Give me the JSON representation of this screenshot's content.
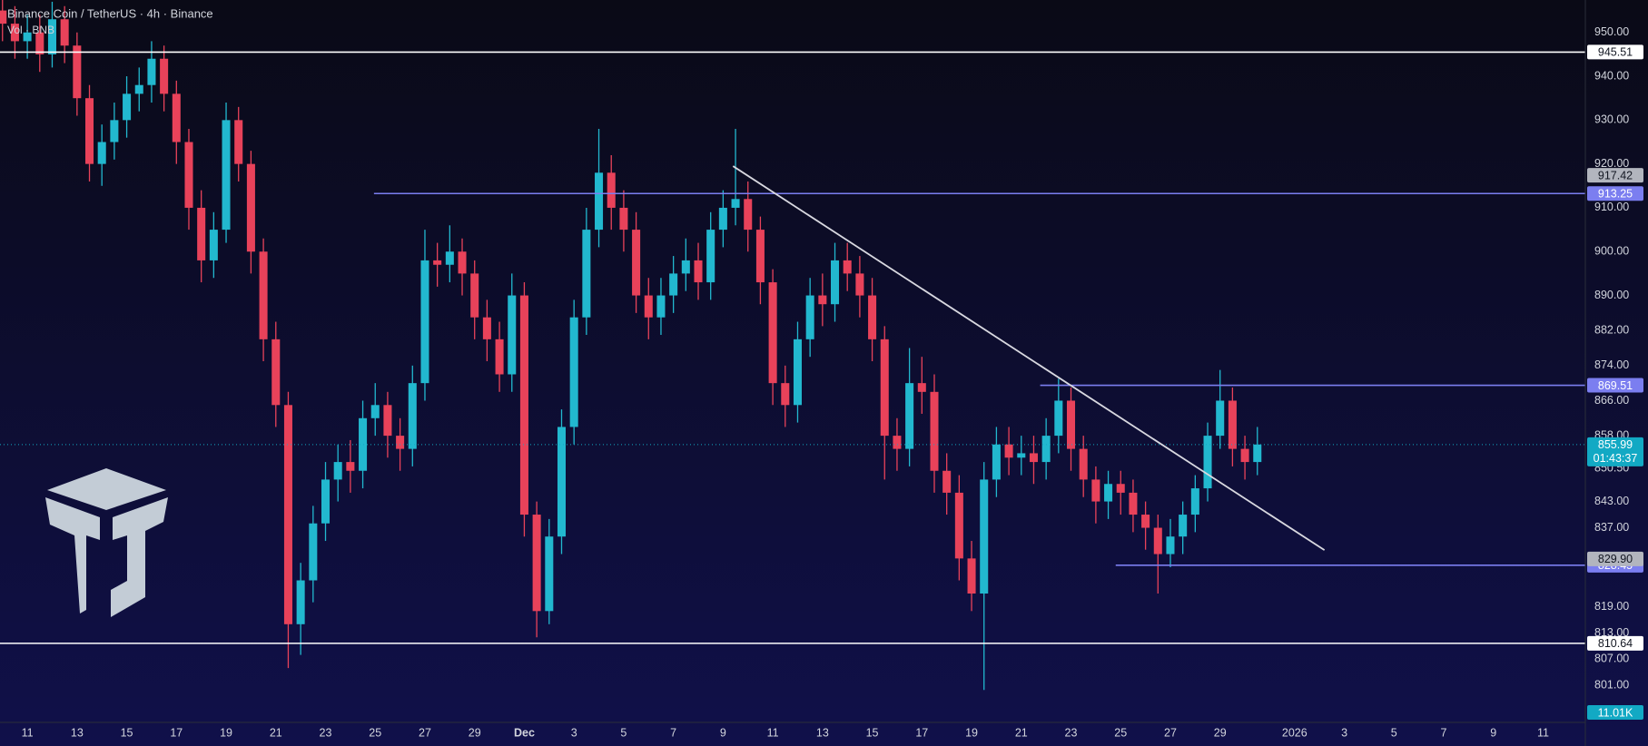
{
  "chart_data": {
    "type": "candlestick",
    "title": "Binance Coin / TetherUS · 4h · Binance",
    "subtitle": "Vol · BNB",
    "up_color": "#22b8cf",
    "down_color": "#e8425a",
    "x": [
      -1,
      -0.5,
      0,
      0.5,
      1,
      1.5,
      2,
      2.5,
      3,
      3.5,
      4,
      4.5,
      5,
      5.5,
      6,
      6.5,
      7,
      7.5,
      8,
      8.5,
      9,
      9.5,
      10,
      10.5,
      11,
      11.5,
      12,
      12.5,
      13,
      13.5,
      14,
      14.5,
      15,
      15.5,
      16,
      16.5,
      17,
      17.5,
      18,
      18.5,
      19,
      19.5,
      20,
      20.5,
      21,
      21.5,
      22,
      22.5,
      23,
      23.5,
      24,
      24.5,
      25,
      25.5,
      26,
      26.5,
      27,
      27.5,
      28,
      28.5,
      29,
      29.5,
      30,
      30.5,
      31,
      31.5,
      32,
      32.5,
      33,
      33.5,
      34,
      34.5,
      35,
      35.5,
      36,
      36.5,
      37,
      37.5,
      38,
      38.5,
      39,
      39.5,
      40,
      40.5,
      41,
      41.5,
      42,
      42.5,
      43,
      43.5,
      44,
      44.5,
      45,
      45.5,
      46,
      46.5,
      47,
      47.5,
      48,
      48.5,
      49,
      49.5
    ],
    "open": [
      955,
      952,
      948,
      950,
      945,
      953,
      947,
      935,
      920,
      925,
      930,
      936,
      938,
      944,
      936,
      925,
      910,
      898,
      905,
      930,
      920,
      900,
      880,
      865,
      815,
      825,
      838,
      848,
      852,
      850,
      862,
      865,
      858,
      855,
      870,
      898,
      897,
      900,
      895,
      885,
      880,
      872,
      890,
      840,
      818,
      835,
      860,
      885,
      905,
      918,
      910,
      905,
      890,
      885,
      890,
      895,
      898,
      893,
      905,
      910,
      912,
      905,
      893,
      870,
      865,
      880,
      890,
      888,
      898,
      895,
      890,
      880,
      858,
      855,
      870,
      868,
      850,
      845,
      830,
      822,
      848,
      856,
      853,
      854,
      852,
      858,
      866,
      855,
      848,
      843,
      847,
      845,
      840,
      837,
      831,
      835,
      840,
      846,
      858,
      866,
      855,
      852
    ],
    "high": [
      959,
      956,
      954,
      954,
      957,
      956,
      950,
      938,
      929,
      934,
      940,
      942,
      948,
      947,
      939,
      928,
      914,
      909,
      934,
      933,
      923,
      903,
      884,
      868,
      829,
      842,
      852,
      856,
      857,
      866,
      870,
      868,
      862,
      874,
      905,
      902,
      906,
      903,
      898,
      889,
      884,
      895,
      893,
      843,
      839,
      864,
      889,
      910,
      928,
      922,
      914,
      909,
      894,
      894,
      899,
      903,
      902,
      909,
      914,
      928,
      916,
      908,
      896,
      874,
      884,
      894,
      895,
      902,
      902,
      899,
      894,
      883,
      862,
      878,
      876,
      872,
      854,
      849,
      834,
      852,
      860,
      860,
      858,
      858,
      862,
      871,
      869,
      858,
      851,
      850,
      850,
      848,
      843,
      840,
      839,
      843,
      849,
      861,
      873,
      869,
      858,
      860
    ],
    "low": [
      948,
      944,
      944,
      941,
      942,
      943,
      931,
      916,
      915,
      921,
      926,
      932,
      934,
      932,
      920,
      905,
      893,
      894,
      902,
      916,
      895,
      875,
      860,
      805,
      808,
      820,
      834,
      843,
      845,
      846,
      858,
      853,
      850,
      851,
      866,
      892,
      893,
      890,
      880,
      875,
      868,
      868,
      835,
      812,
      815,
      831,
      856,
      881,
      901,
      905,
      900,
      886,
      880,
      881,
      886,
      891,
      889,
      889,
      901,
      906,
      900,
      888,
      865,
      860,
      861,
      876,
      883,
      884,
      891,
      885,
      875,
      848,
      850,
      851,
      863,
      845,
      840,
      825,
      818,
      800,
      844,
      849,
      849,
      847,
      848,
      854,
      850,
      844,
      838,
      839,
      840,
      836,
      832,
      822,
      828,
      831,
      836,
      843,
      855,
      851,
      848,
      849
    ],
    "close": [
      952,
      948,
      950,
      945,
      953,
      947,
      935,
      920,
      925,
      930,
      936,
      938,
      944,
      936,
      925,
      910,
      898,
      905,
      930,
      920,
      900,
      880,
      865,
      815,
      825,
      838,
      848,
      852,
      850,
      862,
      865,
      858,
      855,
      870,
      898,
      897,
      900,
      895,
      885,
      880,
      872,
      890,
      840,
      818,
      835,
      860,
      885,
      905,
      918,
      910,
      905,
      890,
      885,
      890,
      895,
      898,
      893,
      905,
      910,
      912,
      905,
      893,
      870,
      865,
      880,
      890,
      888,
      898,
      895,
      890,
      880,
      858,
      855,
      870,
      868,
      850,
      845,
      830,
      822,
      848,
      856,
      853,
      854,
      852,
      858,
      866,
      855,
      848,
      843,
      847,
      845,
      840,
      837,
      831,
      835,
      840,
      846,
      858,
      866,
      855,
      852,
      856
    ],
    "xlim": [
      -1.1,
      62.7
    ],
    "xticks": [
      {
        "value": 0,
        "label": "11"
      },
      {
        "value": 2,
        "label": "13"
      },
      {
        "value": 4,
        "label": "15"
      },
      {
        "value": 6,
        "label": "17"
      },
      {
        "value": 8,
        "label": "19"
      },
      {
        "value": 10,
        "label": "21"
      },
      {
        "value": 12,
        "label": "23"
      },
      {
        "value": 14,
        "label": "25"
      },
      {
        "value": 16,
        "label": "27"
      },
      {
        "value": 18,
        "label": "29"
      },
      {
        "value": 20,
        "label": "Dec"
      },
      {
        "value": 22,
        "label": "3"
      },
      {
        "value": 24,
        "label": "5"
      },
      {
        "value": 26,
        "label": "7"
      },
      {
        "value": 28,
        "label": "9"
      },
      {
        "value": 30,
        "label": "11"
      },
      {
        "value": 32,
        "label": "13"
      },
      {
        "value": 34,
        "label": "15"
      },
      {
        "value": 36,
        "label": "17"
      },
      {
        "value": 38,
        "label": "19"
      },
      {
        "value": 40,
        "label": "21"
      },
      {
        "value": 42,
        "label": "23"
      },
      {
        "value": 44,
        "label": "25"
      },
      {
        "value": 46,
        "label": "27"
      },
      {
        "value": 48,
        "label": "29"
      },
      {
        "value": 51,
        "label": "2026"
      },
      {
        "value": 53,
        "label": "3"
      },
      {
        "value": 55,
        "label": "5"
      },
      {
        "value": 57,
        "label": "7"
      },
      {
        "value": 59,
        "label": "9"
      },
      {
        "value": 61,
        "label": "11"
      }
    ],
    "ylim": [
      792.6,
      957.4
    ],
    "yticks": [
      {
        "value": 950,
        "label": "950.00"
      },
      {
        "value": 940,
        "label": "940.00"
      },
      {
        "value": 930,
        "label": "930.00"
      },
      {
        "value": 920,
        "label": "920.00"
      },
      {
        "value": 910,
        "label": "910.00"
      },
      {
        "value": 900,
        "label": "900.00"
      },
      {
        "value": 890,
        "label": "890.00"
      },
      {
        "value": 882,
        "label": "882.00"
      },
      {
        "value": 874,
        "label": "874.00"
      },
      {
        "value": 866,
        "label": "866.00"
      },
      {
        "value": 858,
        "label": "858.00"
      },
      {
        "value": 850.5,
        "label": "850.50"
      },
      {
        "value": 843,
        "label": "843.00"
      },
      {
        "value": 837,
        "label": "837.00"
      },
      {
        "value": 819,
        "label": "819.00"
      },
      {
        "value": 813,
        "label": "813.00"
      },
      {
        "value": 807,
        "label": "807.00"
      },
      {
        "value": 801,
        "label": "801.00"
      }
    ],
    "levels": [
      {
        "value": 945.51,
        "color": "#ffffff"
      },
      {
        "value": 913.25,
        "color": "#7b7ef0",
        "start": 13.95
      },
      {
        "value": 869.51,
        "color": "#7b7ef0",
        "start": 40.76
      },
      {
        "value": 828.45,
        "color": "#7b7ef0",
        "start": 43.8
      },
      {
        "value": 810.64,
        "color": "#ffffff"
      }
    ],
    "price_tags": [
      {
        "value": 917.42,
        "color": "#b2b5be"
      },
      {
        "value": 829.9,
        "label": "829.90",
        "color": "#b2b5be"
      }
    ],
    "current_price": {
      "value": 855.99,
      "countdown": "01:43:37",
      "color": "#12a9c4"
    },
    "trendline": {
      "x": [
        28.4,
        52.2
      ],
      "y": [
        919.5,
        831.9
      ],
      "color": "#d8d8e0"
    },
    "volume_tag": {
      "value": 11010,
      "label": "11.01K",
      "color": "#12a9c4"
    }
  }
}
